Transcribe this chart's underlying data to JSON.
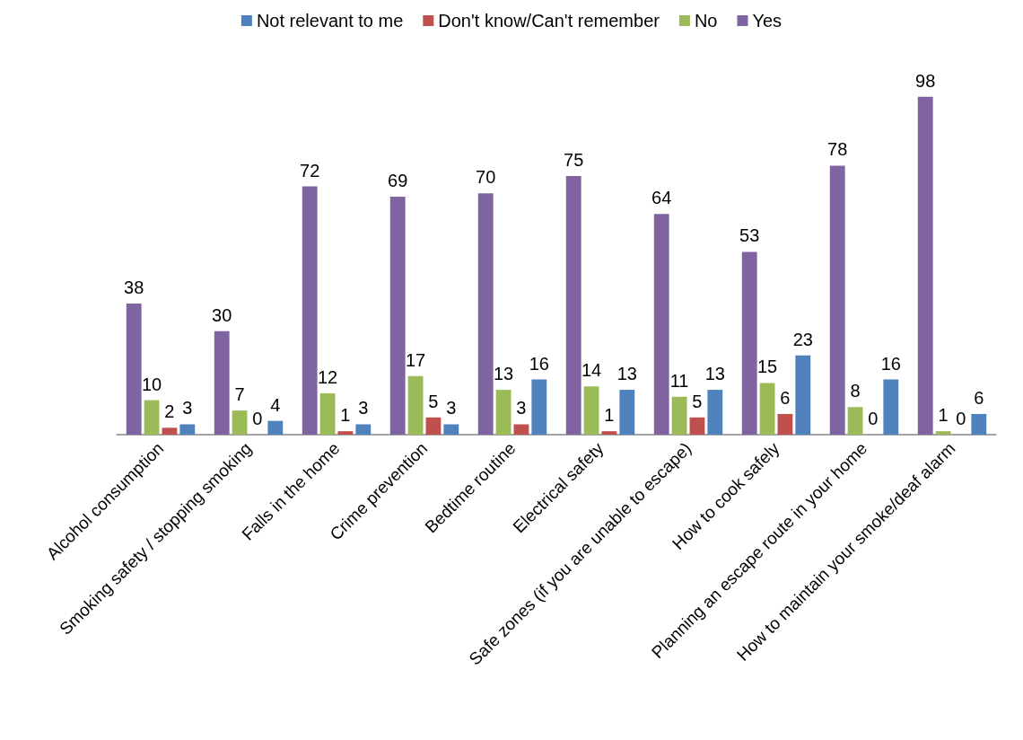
{
  "chart_data": {
    "type": "bar",
    "categories": [
      "Alcohol consumption",
      "Smoking safety / stopping smoking",
      "Falls in the home",
      "Crime prevention",
      "Bedtime routine",
      "Electrical safety",
      "Safe zones (if you are unable to escape)",
      "How to cook safely",
      "Planning an escape route in your home",
      "How to maintain your smoke/deaf alarm"
    ],
    "series": [
      {
        "name": "Yes",
        "color": "#8064a2",
        "values": [
          38,
          30,
          72,
          69,
          70,
          75,
          64,
          53,
          78,
          98
        ]
      },
      {
        "name": "No",
        "color": "#9bbb59",
        "values": [
          10,
          7,
          12,
          17,
          13,
          14,
          11,
          15,
          8,
          1
        ]
      },
      {
        "name": "Don't know/Can't remember",
        "color": "#c0504d",
        "values": [
          2,
          0,
          1,
          5,
          3,
          1,
          5,
          6,
          0,
          0
        ]
      },
      {
        "name": "Not relevant to me",
        "color": "#4f81bd",
        "values": [
          3,
          4,
          3,
          3,
          16,
          13,
          13,
          23,
          16,
          6
        ]
      }
    ],
    "data_labels": true,
    "legend": "top",
    "grid": false,
    "tick_labels": "x"
  }
}
